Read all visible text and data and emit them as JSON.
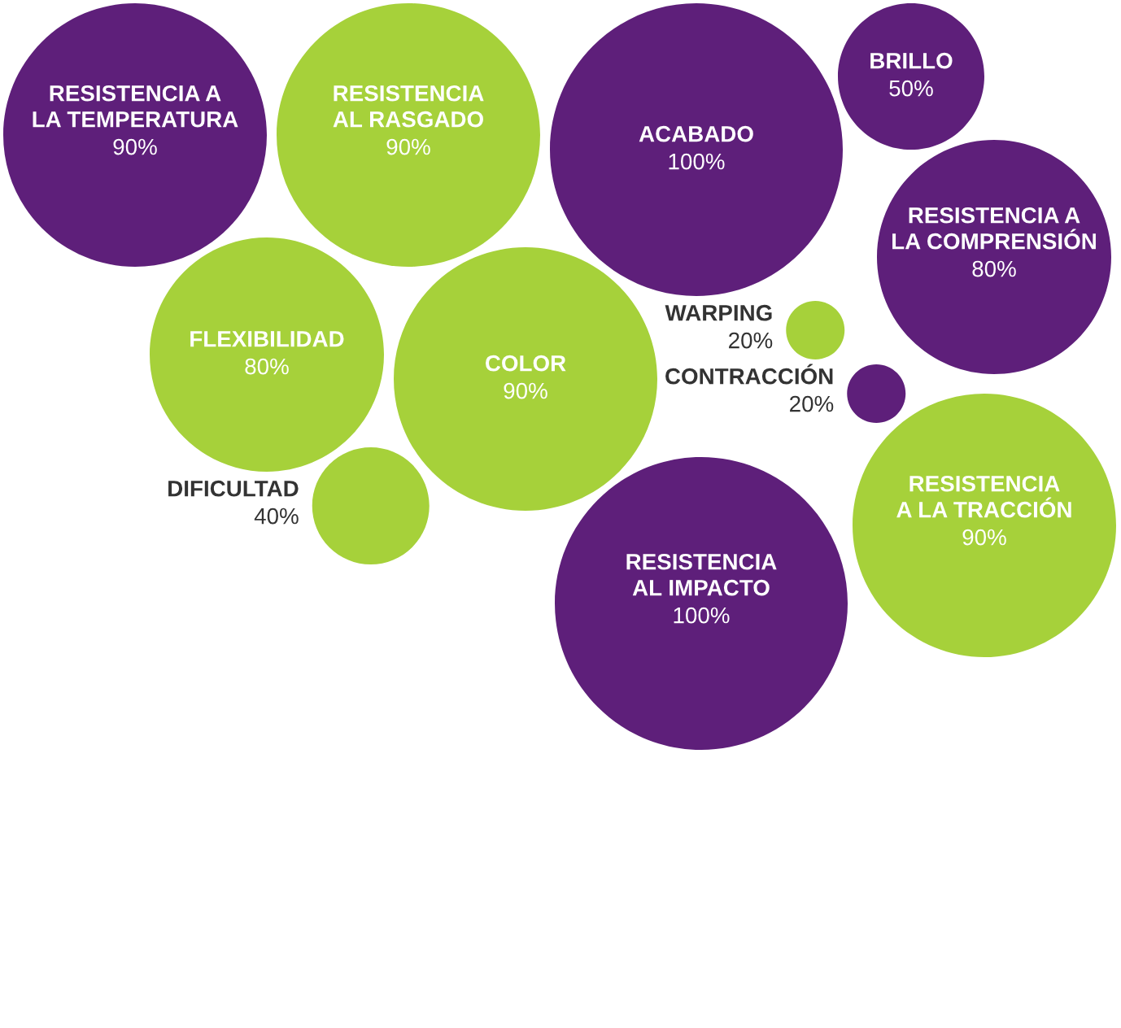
{
  "chart_data": {
    "type": "other",
    "categories": [
      "RESISTENCIA A\nLA TEMPERATURA",
      "RESISTENCIA\nAL RASGADO",
      "ACABADO",
      "BRILLO",
      "RESISTENCIA A\nLA COMPRENSIÓN",
      "FLEXIBILIDAD",
      "COLOR",
      "WARPING",
      "CONTRACCIÓN",
      "RESISTENCIA\nA LA TRACCIÓN",
      "DIFICULTAD",
      "RESISTENCIA\nAL IMPACTO"
    ],
    "values": [
      90,
      90,
      100,
      50,
      80,
      80,
      90,
      20,
      20,
      90,
      40,
      100
    ],
    "value_labels": [
      "90%",
      "90%",
      "100%",
      "50%",
      "80%",
      "80%",
      "90%",
      "20%",
      "20%",
      "90%",
      "40%",
      "100%"
    ],
    "colors": [
      "#5e1f7a",
      "#a6d13a",
      "#5e1f7a",
      "#5e1f7a",
      "#5e1f7a",
      "#a6d13a",
      "#a6d13a",
      "#a6d13a",
      "#5e1f7a",
      "#a6d13a",
      "#a6d13a",
      "#5e1f7a"
    ]
  }
}
